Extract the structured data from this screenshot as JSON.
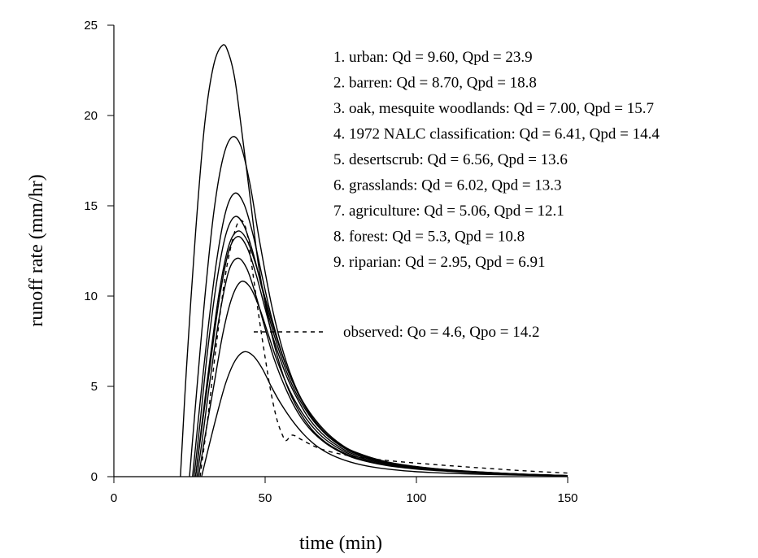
{
  "chart_data": {
    "type": "line",
    "title": "",
    "xlabel": "time (min)",
    "ylabel": "runoff rate (mm/hr)",
    "xlim": [
      0,
      150
    ],
    "ylim": [
      0,
      25
    ],
    "x_ticks": [
      0,
      50,
      100,
      150
    ],
    "y_ticks": [
      0,
      5,
      10,
      15,
      20,
      25
    ],
    "grid": false,
    "legend_position": "top-right",
    "series": [
      {
        "name": "1. urban: Qd = 9.60, Qpd = 23.9",
        "style": "solid",
        "x": [
          22,
          24,
          27,
          30,
          33,
          36,
          38,
          40,
          42,
          45,
          48,
          52,
          56,
          60,
          65,
          70,
          75,
          80,
          90,
          100,
          110,
          120,
          135,
          150
        ],
        "y": [
          0,
          6,
          13.5,
          19.5,
          22.8,
          23.9,
          23.4,
          22,
          19.5,
          15.5,
          11.5,
          8,
          5.6,
          4,
          2.7,
          1.9,
          1.4,
          1.05,
          0.65,
          0.45,
          0.32,
          0.22,
          0.12,
          0.05
        ]
      },
      {
        "name": "2. barren: Qd = 8.70, Qpd = 18.8",
        "style": "solid",
        "x": [
          25,
          27,
          30,
          33,
          36,
          39,
          42,
          45,
          48,
          52,
          56,
          60,
          65,
          70,
          75,
          80,
          90,
          100,
          110,
          120,
          135,
          150
        ],
        "y": [
          0,
          4,
          9.8,
          14.6,
          17.6,
          18.8,
          18.3,
          16.2,
          13.2,
          9.6,
          6.9,
          5,
          3.4,
          2.4,
          1.75,
          1.3,
          0.8,
          0.55,
          0.38,
          0.26,
          0.14,
          0.06
        ]
      },
      {
        "name": "3. oak, mesquite woodlands: Qd = 7.00, Qpd = 15.7",
        "style": "solid",
        "x": [
          26,
          28,
          31,
          34,
          37,
          40,
          43,
          46,
          49,
          52,
          56,
          60,
          65,
          70,
          75,
          80,
          90,
          100,
          110,
          120,
          135,
          150
        ],
        "y": [
          0,
          3.3,
          8,
          12,
          14.7,
          15.7,
          15.1,
          13.4,
          11.1,
          8.9,
          6.6,
          4.9,
          3.4,
          2.4,
          1.75,
          1.3,
          0.8,
          0.55,
          0.38,
          0.26,
          0.14,
          0.06
        ]
      },
      {
        "name": "4. 1972 NALC classification: Qd = 6.41, Qpd = 14.4",
        "style": "solid",
        "x": [
          26.5,
          28.5,
          31,
          34,
          37,
          40,
          43,
          46,
          49,
          52,
          56,
          60,
          65,
          70,
          75,
          80,
          90,
          100,
          110,
          120,
          135,
          150
        ],
        "y": [
          0,
          3,
          7,
          10.8,
          13.4,
          14.4,
          13.9,
          12.4,
          10.4,
          8.4,
          6.3,
          4.7,
          3.3,
          2.35,
          1.7,
          1.27,
          0.78,
          0.53,
          0.37,
          0.25,
          0.13,
          0.06
        ]
      },
      {
        "name": "5. desertscrub: Qd = 6.56, Qpd = 13.6",
        "style": "solid",
        "x": [
          27,
          29,
          32,
          35,
          38,
          41,
          44,
          47,
          50,
          53,
          57,
          61,
          65,
          70,
          75,
          80,
          90,
          100,
          110,
          120,
          135,
          150
        ],
        "y": [
          0,
          2.8,
          6.8,
          10.4,
          12.8,
          13.6,
          13.1,
          11.7,
          9.9,
          8.1,
          6.1,
          4.6,
          3.5,
          2.5,
          1.8,
          1.35,
          0.83,
          0.56,
          0.39,
          0.27,
          0.14,
          0.06
        ]
      },
      {
        "name": "6. grasslands: Qd = 6.02, Qpd = 13.3",
        "style": "solid",
        "x": [
          27,
          29,
          32,
          35,
          38,
          41,
          44,
          47,
          50,
          53,
          57,
          61,
          65,
          70,
          75,
          80,
          90,
          100,
          110,
          120,
          135,
          150
        ],
        "y": [
          0,
          2.6,
          6.4,
          10,
          12.5,
          13.3,
          12.7,
          11.2,
          9.3,
          7.5,
          5.6,
          4.2,
          3.1,
          2.2,
          1.6,
          1.2,
          0.74,
          0.5,
          0.35,
          0.24,
          0.12,
          0.05
        ]
      },
      {
        "name": "7. agriculture: Qd = 5.06, Qpd = 12.1",
        "style": "solid",
        "x": [
          27.5,
          29.5,
          32,
          35,
          38,
          41,
          44,
          47,
          50,
          53,
          57,
          61,
          65,
          70,
          75,
          80,
          90,
          100,
          110,
          120,
          135,
          150
        ],
        "y": [
          0,
          2.4,
          5.6,
          9,
          11.4,
          12.1,
          11.5,
          10,
          8.2,
          6.5,
          4.8,
          3.5,
          2.6,
          1.85,
          1.35,
          1,
          0.62,
          0.42,
          0.3,
          0.2,
          0.1,
          0.05
        ]
      },
      {
        "name": "8. forest: Qd = 5.3, Qpd = 10.8",
        "style": "solid",
        "x": [
          28,
          30,
          33,
          36,
          39,
          42,
          45,
          48,
          51,
          54,
          58,
          62,
          66,
          70,
          75,
          80,
          90,
          100,
          110,
          120,
          135,
          150
        ],
        "y": [
          0,
          2.1,
          5,
          7.9,
          9.9,
          10.8,
          10.5,
          9.4,
          7.9,
          6.4,
          4.8,
          3.6,
          2.7,
          2.05,
          1.5,
          1.12,
          0.7,
          0.48,
          0.33,
          0.23,
          0.12,
          0.05
        ]
      },
      {
        "name": "9. riparian: Qd = 2.95, Qpd = 6.91",
        "style": "solid",
        "x": [
          29,
          31,
          34,
          37,
          40,
          43,
          46,
          49,
          52,
          55,
          59,
          63,
          67,
          72,
          78,
          85,
          95,
          105,
          120,
          135,
          150
        ],
        "y": [
          0,
          1.4,
          3.4,
          5.2,
          6.4,
          6.91,
          6.7,
          6,
          5,
          4.1,
          3.1,
          2.3,
          1.7,
          1.2,
          0.82,
          0.55,
          0.34,
          0.23,
          0.14,
          0.08,
          0.04
        ]
      },
      {
        "name": "observed: Qo = 4.6, Qpo = 14.2",
        "style": "dashed",
        "x": [
          28.5,
          31,
          34,
          37,
          40,
          42,
          44,
          46,
          48,
          50,
          52,
          54,
          56,
          57,
          59,
          62,
          66,
          70,
          75,
          80,
          90,
          100,
          110,
          120,
          135,
          150
        ],
        "y": [
          0,
          3.2,
          7.5,
          11.3,
          13.6,
          14.2,
          13.5,
          11.2,
          8.8,
          6.6,
          4.6,
          3.1,
          2.2,
          2,
          2.3,
          2.05,
          1.7,
          1.45,
          1.25,
          1.1,
          0.9,
          0.75,
          0.62,
          0.5,
          0.33,
          0.2
        ]
      }
    ],
    "annotations": {
      "observed_label": "observed: Qo = 4.6, Qpo = 14.2"
    }
  }
}
